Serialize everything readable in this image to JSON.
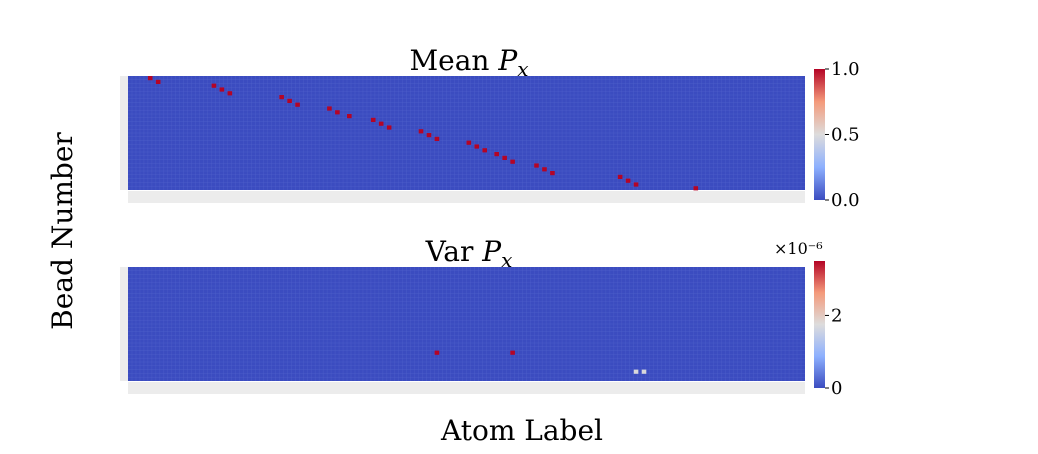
{
  "figure": {
    "xlabel": "Atom Label",
    "ylabel": "Bead Number"
  },
  "chart_data": [
    {
      "type": "heatmap",
      "title": "Mean P_x",
      "title_main": "Mean ",
      "title_sym": "P",
      "title_sub": "x",
      "n_cols": 170,
      "n_rows": 30,
      "background_value": 0.0,
      "vmin": 0.0,
      "vmax": 1.0,
      "colormap": "coolwarm",
      "colors": {
        "low": "#3b4cc0",
        "mid": "#dddcdc",
        "high": "#b40426"
      },
      "colorbar_ticks": [
        {
          "value": 0.0,
          "label": "0.0"
        },
        {
          "value": 0.5,
          "label": "0.5"
        },
        {
          "value": 1.0,
          "label": "1.0"
        }
      ],
      "cells": [
        {
          "col": 5,
          "row": 0,
          "value": 1.0
        },
        {
          "col": 7,
          "row": 1,
          "value": 1.0
        },
        {
          "col": 21,
          "row": 2,
          "value": 1.0
        },
        {
          "col": 23,
          "row": 3,
          "value": 1.0
        },
        {
          "col": 25,
          "row": 4,
          "value": 1.0
        },
        {
          "col": 38,
          "row": 5,
          "value": 1.0
        },
        {
          "col": 40,
          "row": 6,
          "value": 1.0
        },
        {
          "col": 42,
          "row": 7,
          "value": 1.0
        },
        {
          "col": 50,
          "row": 8,
          "value": 1.0
        },
        {
          "col": 52,
          "row": 9,
          "value": 1.0
        },
        {
          "col": 55,
          "row": 10,
          "value": 1.0
        },
        {
          "col": 61,
          "row": 11,
          "value": 1.0
        },
        {
          "col": 63,
          "row": 12,
          "value": 1.0
        },
        {
          "col": 65,
          "row": 13,
          "value": 1.0
        },
        {
          "col": 73,
          "row": 14,
          "value": 1.0
        },
        {
          "col": 75,
          "row": 15,
          "value": 1.0
        },
        {
          "col": 77,
          "row": 16,
          "value": 1.0
        },
        {
          "col": 85,
          "row": 17,
          "value": 1.0
        },
        {
          "col": 87,
          "row": 18,
          "value": 1.0
        },
        {
          "col": 89,
          "row": 19,
          "value": 1.0
        },
        {
          "col": 92,
          "row": 20,
          "value": 1.0
        },
        {
          "col": 94,
          "row": 21,
          "value": 1.0
        },
        {
          "col": 96,
          "row": 22,
          "value": 1.0
        },
        {
          "col": 102,
          "row": 23,
          "value": 1.0
        },
        {
          "col": 104,
          "row": 24,
          "value": 1.0
        },
        {
          "col": 106,
          "row": 25,
          "value": 1.0
        },
        {
          "col": 123,
          "row": 26,
          "value": 1.0
        },
        {
          "col": 125,
          "row": 27,
          "value": 1.0
        },
        {
          "col": 127,
          "row": 28,
          "value": 1.0
        },
        {
          "col": 142,
          "row": 29,
          "value": 1.0
        }
      ]
    },
    {
      "type": "heatmap",
      "title": "Var P_x",
      "title_main": "Var ",
      "title_sym": "P",
      "title_sub": "x",
      "n_cols": 170,
      "n_rows": 30,
      "background_value": 0.0,
      "vmin": 0.0,
      "vmax": 3.5,
      "value_scale_label": "×10⁻⁶",
      "colormap": "coolwarm",
      "colors": {
        "low": "#3b4cc0",
        "mid": "#dddcdc",
        "high": "#b40426"
      },
      "colorbar_ticks": [
        {
          "value": 0,
          "label": "0"
        },
        {
          "value": 2,
          "label": "2"
        }
      ],
      "cells": [
        {
          "col": 77,
          "row": 22,
          "value": 3.5
        },
        {
          "col": 96,
          "row": 22,
          "value": 3.5
        },
        {
          "col": 127,
          "row": 27,
          "value": 1.7
        },
        {
          "col": 129,
          "row": 27,
          "value": 1.7
        }
      ]
    }
  ]
}
